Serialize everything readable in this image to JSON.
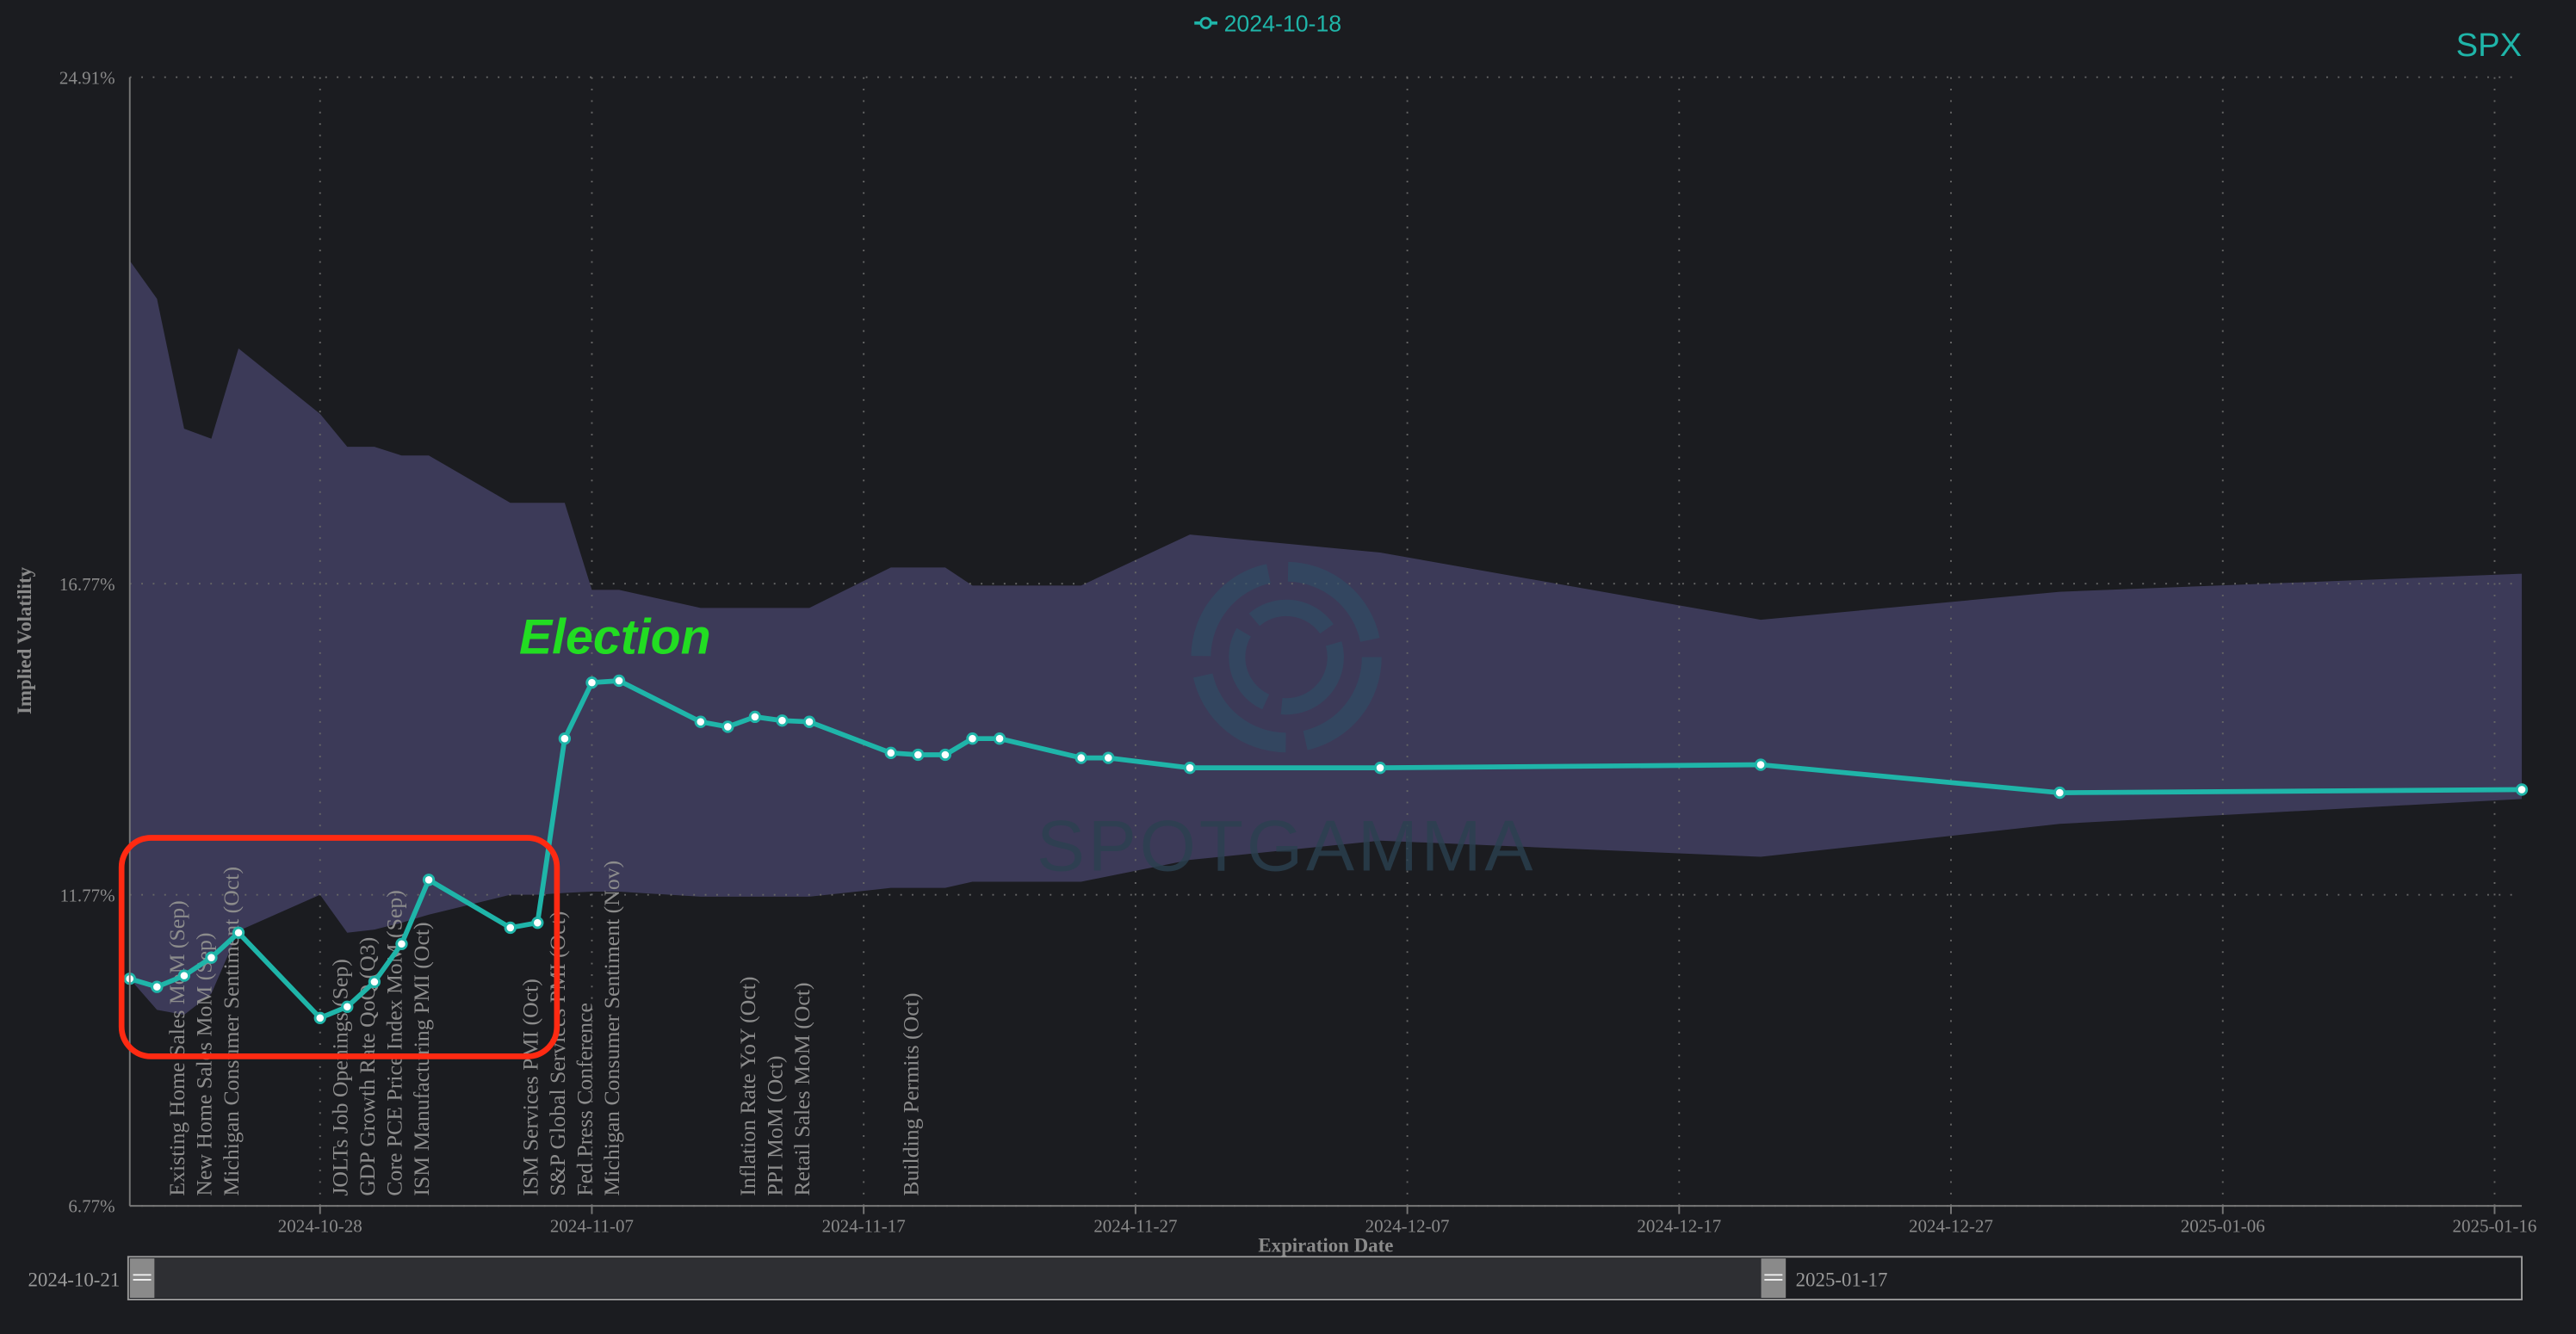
{
  "chart_data": {
    "type": "line",
    "ticker": "SPX",
    "x_label": "Expiration Date",
    "y_label": "Implied Volatility",
    "annotation": "Election",
    "watermark": "SPOTGAMMA",
    "legend": "top",
    "grid": true,
    "x": [
      "2024-10-21",
      "2024-10-22",
      "2024-10-23",
      "2024-10-24",
      "2024-10-25",
      "2024-10-28",
      "2024-10-29",
      "2024-10-30",
      "2024-10-31",
      "2024-11-01",
      "2024-11-04",
      "2024-11-05",
      "2024-11-06",
      "2024-11-07",
      "2024-11-08",
      "2024-11-11",
      "2024-11-12",
      "2024-11-13",
      "2024-11-14",
      "2024-11-15",
      "2024-11-18",
      "2024-11-19",
      "2024-11-20",
      "2024-11-21",
      "2024-11-22",
      "2024-11-25",
      "2024-11-26",
      "2024-11-29",
      "2024-12-06",
      "2024-12-20",
      "2024-12-31",
      "2025-01-17"
    ],
    "series": [
      {
        "name": "2024-10-18",
        "color": "#1fb5a9",
        "values": [
          10.42,
          10.29,
          10.47,
          10.76,
          11.16,
          9.79,
          9.97,
          10.37,
          10.98,
          12.01,
          11.24,
          11.32,
          14.28,
          15.18,
          15.21,
          14.55,
          14.47,
          14.63,
          14.57,
          14.55,
          14.05,
          14.02,
          14.02,
          14.28,
          14.28,
          13.97,
          13.97,
          13.81,
          13.81,
          13.86,
          13.41,
          13.46
        ]
      }
    ],
    "band": {
      "color": "#3c3a58",
      "x": [
        "2024-10-21",
        "2024-10-22",
        "2024-10-23",
        "2024-10-24",
        "2024-10-25",
        "2024-10-28",
        "2024-10-29",
        "2024-10-30",
        "2024-10-31",
        "2024-11-01",
        "2024-11-04",
        "2024-11-05",
        "2024-11-06",
        "2024-11-07",
        "2024-11-08",
        "2024-11-11",
        "2024-11-15",
        "2024-11-18",
        "2024-11-20",
        "2024-11-21",
        "2024-11-25",
        "2024-11-29",
        "2024-12-06",
        "2024-12-20",
        "2024-12-31",
        "2025-01-17"
      ],
      "upper": [
        21.96,
        21.35,
        19.26,
        19.1,
        20.55,
        19.5,
        18.97,
        18.97,
        18.83,
        18.83,
        18.07,
        18.07,
        18.07,
        16.67,
        16.67,
        16.38,
        16.38,
        17.03,
        17.03,
        16.74,
        16.74,
        17.56,
        17.27,
        16.19,
        16.64,
        16.93
      ],
      "lower": [
        10.42,
        9.92,
        9.84,
        10.18,
        11.19,
        11.77,
        11.16,
        11.21,
        11.32,
        11.45,
        11.77,
        11.77,
        11.8,
        11.82,
        11.82,
        11.74,
        11.74,
        11.88,
        11.88,
        11.98,
        11.98,
        12.33,
        12.64,
        12.38,
        12.91,
        13.31
      ]
    },
    "events": [
      {
        "x": "2024-10-23",
        "label": "Existing Home Sales MoM (Sep)"
      },
      {
        "x": "2024-10-24",
        "label": "New Home Sales MoM (Sep)"
      },
      {
        "x": "2024-10-25",
        "label": "Michigan Consumer Sentiment (Oct)"
      },
      {
        "x": "2024-10-29",
        "label": "JOLTs Job Openings (Sep)"
      },
      {
        "x": "2024-10-30",
        "label": "GDP Growth Rate QoQ (Q3)"
      },
      {
        "x": "2024-10-31",
        "label": "Core PCE Price Index MoM (Sep)"
      },
      {
        "x": "2024-11-01",
        "label": "ISM Manufacturing PMI (Oct)"
      },
      {
        "x": "2024-11-05",
        "label": "ISM Services PMI (Oct)"
      },
      {
        "x": "2024-11-06",
        "label": "S&P Global Services PMI (Oct)"
      },
      {
        "x": "2024-11-07",
        "label": "Fed Press Conference"
      },
      {
        "x": "2024-11-08",
        "label": "Michigan Consumer Sentiment (Nov)"
      },
      {
        "x": "2024-11-13",
        "label": "Inflation Rate YoY (Oct)"
      },
      {
        "x": "2024-11-14",
        "label": "PPI MoM (Oct)"
      },
      {
        "x": "2024-11-15",
        "label": "Retail Sales MoM (Oct)"
      },
      {
        "x": "2024-11-19",
        "label": "Building Permits (Oct)"
      }
    ],
    "xlim": [
      "2024-10-21",
      "2025-01-17"
    ],
    "xticks": [
      "2024-10-28",
      "2024-11-07",
      "2024-11-17",
      "2024-11-27",
      "2024-12-07",
      "2024-12-17",
      "2024-12-27",
      "2025-01-06",
      "2025-01-16"
    ],
    "ylim": [
      6.77,
      24.91
    ],
    "yticks": [
      {
        "value": 6.77,
        "label": "6.77%"
      },
      {
        "value": 11.77,
        "label": "11.77%"
      },
      {
        "value": 16.77,
        "label": "16.77%"
      },
      {
        "value": 24.91,
        "label": "24.91%"
      }
    ]
  }
}
